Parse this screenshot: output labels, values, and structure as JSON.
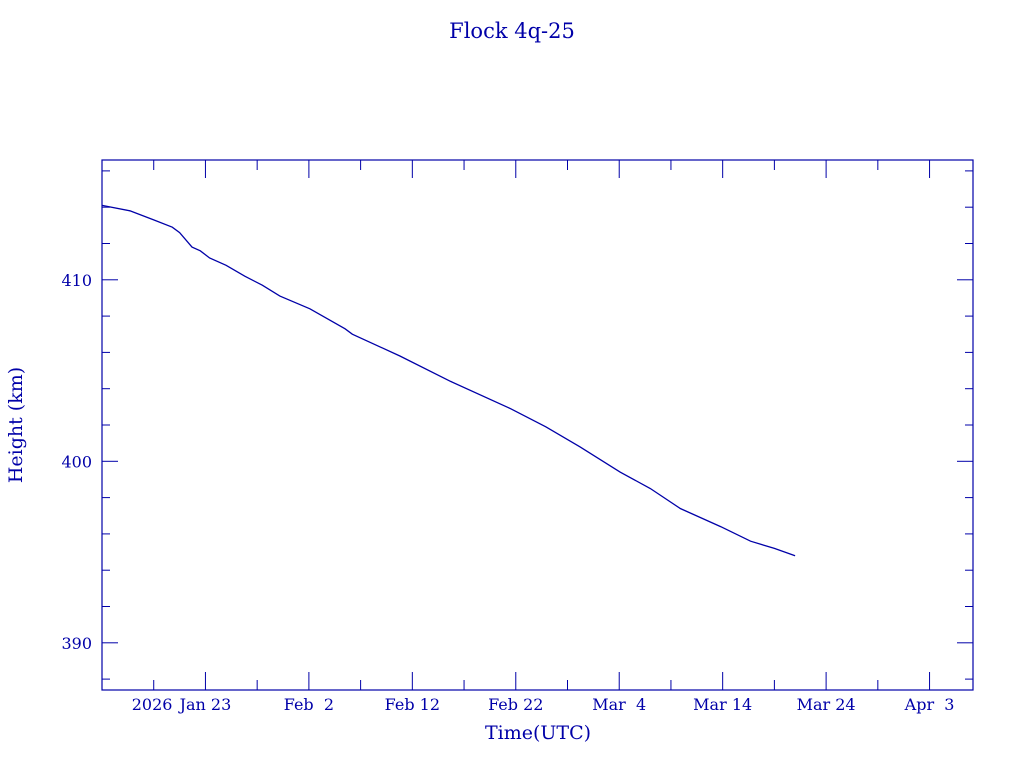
{
  "chart_data": {
    "type": "line",
    "title": "Flock 4q-25",
    "xlabel": "Time(UTC)",
    "ylabel": "Height (km)",
    "x_units": "days since 2026 Jan 13",
    "year_label": "2026",
    "xlim": [
      0,
      84.2
    ],
    "ylim": [
      387.4,
      416.6
    ],
    "x_ticks": [
      {
        "value": 10,
        "label": "Jan 23"
      },
      {
        "value": 20,
        "label": "Feb  2"
      },
      {
        "value": 30,
        "label": "Feb 12"
      },
      {
        "value": 40,
        "label": "Feb 22"
      },
      {
        "value": 50,
        "label": "Mar  4"
      },
      {
        "value": 60,
        "label": "Mar 14"
      },
      {
        "value": 70,
        "label": "Mar 24"
      },
      {
        "value": 80,
        "label": "Apr  3"
      }
    ],
    "x_minor_step": 5,
    "y_ticks": [
      {
        "value": 390,
        "label": "390"
      },
      {
        "value": 400,
        "label": "400"
      },
      {
        "value": 410,
        "label": "410"
      }
    ],
    "y_minor_step": 2,
    "grid": false,
    "color": "#0000a8",
    "series": [
      {
        "name": "Height",
        "x": [
          0,
          2.7,
          5,
          6.8,
          7.5,
          8.7,
          9.5,
          10.4,
          12,
          13.8,
          15.5,
          17.2,
          20.1,
          23.5,
          24.2,
          28.8,
          33.7,
          39.5,
          42.9,
          46.2,
          50.1,
          53,
          55.9,
          59.8,
          62.7,
          65,
          67
        ],
        "y": [
          414.1,
          413.8,
          413.3,
          412.9,
          412.6,
          411.8,
          411.6,
          411.2,
          410.8,
          410.2,
          409.7,
          409.1,
          408.4,
          407.3,
          407.0,
          405.8,
          404.4,
          402.9,
          401.9,
          400.8,
          399.4,
          398.5,
          397.4,
          396.4,
          395.6,
          395.2,
          394.8
        ]
      }
    ]
  }
}
